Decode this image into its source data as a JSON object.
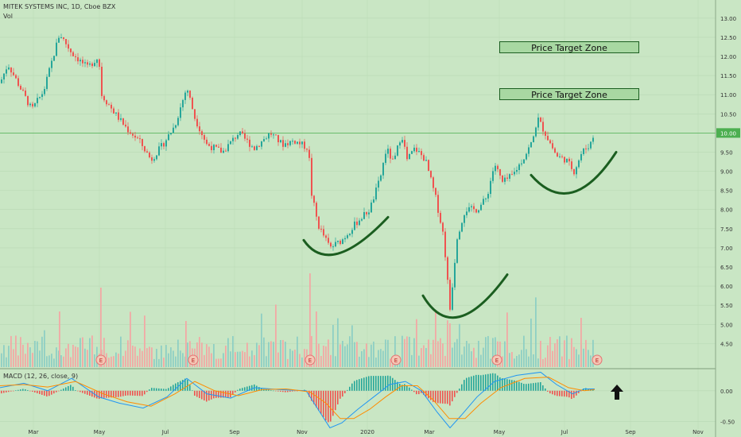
{
  "header": {
    "symbol": "MITEK SYSTEMS INC, 1D, Cboe BZX",
    "volume_label": "Vol",
    "macd_label": "MACD (12, 26, close, 9)"
  },
  "annotations": {
    "zone_1": "Price Target Zone",
    "zone_2": "Price Target Zone",
    "earnings_marker": "E"
  },
  "price_badge": "10.00",
  "colors": {
    "background": "#c9e6c4",
    "up": "#26a69a",
    "down": "#ef5350",
    "volume_up": "#8fcfc4",
    "volume_down": "#f2a9a5",
    "macd_line": "#2196f3",
    "signal_line": "#ff8c00",
    "cup_curve": "#1b5e20",
    "price_line": "#4caf50"
  },
  "chart_data": {
    "type": "candlestick",
    "xaxis": {
      "ticks": [
        "Mar",
        "May",
        "Jul",
        "Sep",
        "Nov",
        "2020",
        "Mar",
        "May",
        "Jul",
        "Sep",
        "Nov"
      ]
    },
    "yaxis": {
      "ticks": [
        4.5,
        5.0,
        5.5,
        6.0,
        6.5,
        7.0,
        7.5,
        8.0,
        8.5,
        9.0,
        9.5,
        10.0,
        10.5,
        11.0,
        11.5,
        12.0,
        12.5,
        13.0
      ],
      "range": [
        4.3,
        13.1
      ]
    },
    "macd_axis": {
      "ticks": [
        0.0,
        -0.5
      ],
      "range": [
        -0.62,
        0.28
      ]
    },
    "current_price": 10.0,
    "target_zones": [
      12.15,
      10.97
    ],
    "price_path": [
      [
        0,
        11.3
      ],
      [
        10,
        11.8
      ],
      [
        25,
        11.2
      ],
      [
        40,
        10.6
      ],
      [
        55,
        11.1
      ],
      [
        75,
        12.6
      ],
      [
        90,
        12.1
      ],
      [
        110,
        11.7
      ],
      [
        124,
        12.0
      ],
      [
        128,
        11.0
      ],
      [
        145,
        10.5
      ],
      [
        160,
        10.1
      ],
      [
        175,
        9.8
      ],
      [
        190,
        9.3
      ],
      [
        205,
        9.7
      ],
      [
        220,
        10.2
      ],
      [
        235,
        11.2
      ],
      [
        245,
        10.4
      ],
      [
        260,
        9.7
      ],
      [
        280,
        9.5
      ],
      [
        300,
        10.0
      ],
      [
        320,
        9.6
      ],
      [
        340,
        10.0
      ],
      [
        355,
        9.7
      ],
      [
        370,
        9.8
      ],
      [
        388,
        9.6
      ],
      [
        392,
        8.4
      ],
      [
        400,
        7.6
      ],
      [
        415,
        7.0
      ],
      [
        430,
        7.2
      ],
      [
        450,
        7.7
      ],
      [
        465,
        8.0
      ],
      [
        478,
        8.8
      ],
      [
        486,
        9.6
      ],
      [
        495,
        9.2
      ],
      [
        505,
        10.0
      ],
      [
        512,
        9.3
      ],
      [
        522,
        9.6
      ],
      [
        535,
        9.3
      ],
      [
        548,
        8.3
      ],
      [
        558,
        7.3
      ],
      [
        566,
        5.4
      ],
      [
        575,
        7.3
      ],
      [
        585,
        8.0
      ],
      [
        600,
        8.0
      ],
      [
        612,
        8.3
      ],
      [
        622,
        9.2
      ],
      [
        632,
        8.7
      ],
      [
        645,
        8.9
      ],
      [
        660,
        9.4
      ],
      [
        670,
        9.8
      ],
      [
        676,
        10.4
      ],
      [
        688,
        9.9
      ],
      [
        700,
        9.4
      ],
      [
        712,
        9.3
      ],
      [
        722,
        9.0
      ],
      [
        732,
        9.5
      ],
      [
        742,
        9.7
      ],
      [
        748,
        10.0
      ]
    ],
    "macd_line": [
      [
        0,
        0.05
      ],
      [
        30,
        0.12
      ],
      [
        60,
        0.0
      ],
      [
        90,
        0.2
      ],
      [
        124,
        -0.1
      ],
      [
        150,
        -0.2
      ],
      [
        180,
        -0.28
      ],
      [
        210,
        -0.1
      ],
      [
        235,
        0.2
      ],
      [
        260,
        -0.05
      ],
      [
        290,
        -0.12
      ],
      [
        320,
        0.05
      ],
      [
        350,
        0.02
      ],
      [
        385,
        0.0
      ],
      [
        400,
        -0.3
      ],
      [
        415,
        -0.6
      ],
      [
        430,
        -0.52
      ],
      [
        450,
        -0.3
      ],
      [
        470,
        -0.1
      ],
      [
        490,
        0.1
      ],
      [
        510,
        0.15
      ],
      [
        530,
        0.0
      ],
      [
        550,
        -0.35
      ],
      [
        566,
        -0.6
      ],
      [
        580,
        -0.4
      ],
      [
        600,
        -0.1
      ],
      [
        622,
        0.15
      ],
      [
        650,
        0.25
      ],
      [
        680,
        0.3
      ],
      [
        700,
        0.1
      ],
      [
        720,
        -0.05
      ],
      [
        735,
        0.03
      ],
      [
        748,
        0.03
      ]
    ],
    "signal_line": [
      [
        0,
        0.08
      ],
      [
        30,
        0.1
      ],
      [
        60,
        0.06
      ],
      [
        95,
        0.15
      ],
      [
        130,
        -0.05
      ],
      [
        160,
        -0.18
      ],
      [
        190,
        -0.25
      ],
      [
        220,
        -0.05
      ],
      [
        245,
        0.15
      ],
      [
        270,
        0.0
      ],
      [
        300,
        -0.08
      ],
      [
        330,
        0.02
      ],
      [
        360,
        0.03
      ],
      [
        390,
        -0.02
      ],
      [
        410,
        -0.2
      ],
      [
        428,
        -0.45
      ],
      [
        445,
        -0.45
      ],
      [
        465,
        -0.3
      ],
      [
        485,
        -0.1
      ],
      [
        505,
        0.08
      ],
      [
        525,
        0.08
      ],
      [
        545,
        -0.15
      ],
      [
        565,
        -0.45
      ],
      [
        585,
        -0.45
      ],
      [
        605,
        -0.2
      ],
      [
        630,
        0.05
      ],
      [
        660,
        0.2
      ],
      [
        690,
        0.22
      ],
      [
        715,
        0.05
      ],
      [
        735,
        0.0
      ],
      [
        748,
        0.02
      ]
    ],
    "earnings_x": [
      127,
      243,
      390,
      498,
      625,
      751
    ],
    "cup_curves": [
      {
        "from": [
          382,
          7.2
        ],
        "bottom": [
          425,
          6.85
        ],
        "to": [
          488,
          7.8
        ]
      },
      {
        "from": [
          532,
          5.75
        ],
        "bottom": [
          578,
          5.2
        ],
        "to": [
          638,
          6.3
        ]
      },
      {
        "from": [
          668,
          8.9
        ],
        "bottom": [
          720,
          8.45
        ],
        "to": [
          775,
          9.5
        ]
      }
    ]
  }
}
